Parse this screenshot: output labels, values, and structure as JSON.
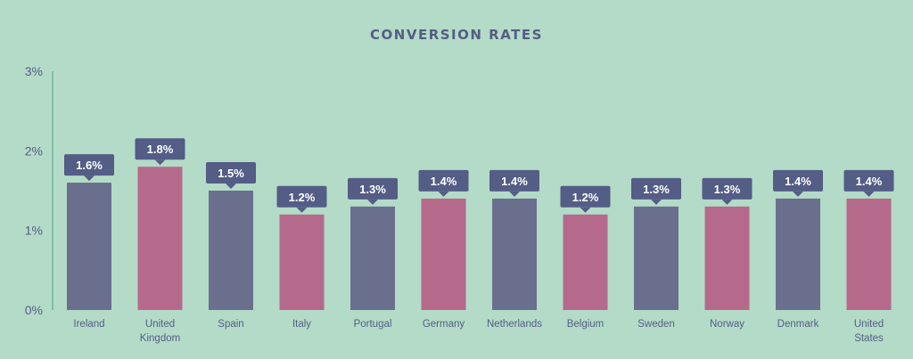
{
  "chart_data": {
    "type": "bar",
    "title": "CONVERSION RATES",
    "xlabel": "",
    "ylabel": "",
    "categories": [
      "Ireland",
      "United Kingdom",
      "Spain",
      "Italy",
      "Portugal",
      "Germany",
      "Netherlands",
      "Belgium",
      "Sweden",
      "Norway",
      "Denmark",
      "United States"
    ],
    "category_label_lines": [
      [
        "Ireland"
      ],
      [
        "United",
        "Kingdom"
      ],
      [
        "Spain"
      ],
      [
        "Italy"
      ],
      [
        "Portugal"
      ],
      [
        "Germany"
      ],
      [
        "Netherlands"
      ],
      [
        "Belgium"
      ],
      [
        "Sweden"
      ],
      [
        "Norway"
      ],
      [
        "Denmark"
      ],
      [
        "United",
        "States"
      ]
    ],
    "values": [
      1.6,
      1.8,
      1.5,
      1.2,
      1.3,
      1.4,
      1.4,
      1.2,
      1.3,
      1.3,
      1.4,
      1.4
    ],
    "data_labels": [
      "1.6%",
      "1.8%",
      "1.5%",
      "1.2%",
      "1.3%",
      "1.4%",
      "1.4%",
      "1.2%",
      "1.3%",
      "1.3%",
      "1.4%",
      "1.4%"
    ],
    "bar_colors": [
      "#6a6f8e",
      "#b56a8c",
      "#6a6f8e",
      "#b56a8c",
      "#6a6f8e",
      "#b56a8c",
      "#6a6f8e",
      "#b56a8c",
      "#6a6f8e",
      "#b56a8c",
      "#6a6f8e",
      "#b56a8c"
    ],
    "ylim": [
      0,
      3
    ],
    "yticks": [
      0,
      1,
      2,
      3
    ],
    "ytick_labels": [
      "0%",
      "1%",
      "2%",
      "3%"
    ],
    "grid": false,
    "legend": "none"
  },
  "colors": {
    "background": "#b3dbc7",
    "axis": "#6fb7a0",
    "label_box": "#545d85",
    "text": "#545d85"
  }
}
